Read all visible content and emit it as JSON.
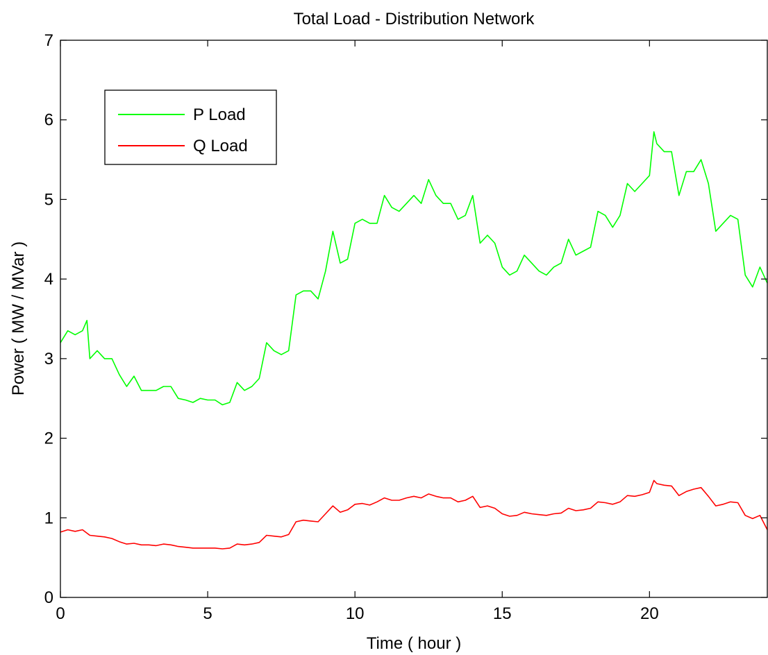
{
  "chart_data": {
    "type": "line",
    "title": "Total Load - Distribution Network",
    "xlabel": "Time ( hour )",
    "ylabel": "Power ( MW / MVar )",
    "xlim": [
      0,
      24
    ],
    "ylim": [
      0,
      7
    ],
    "x_ticks": [
      0,
      5,
      10,
      15,
      20
    ],
    "y_ticks": [
      0,
      1,
      2,
      3,
      4,
      5,
      6,
      7
    ],
    "grid": false,
    "legend_position": "top-left",
    "series": [
      {
        "name": "P Load",
        "color": "#00ff00",
        "x": [
          0,
          0.25,
          0.5,
          0.75,
          0.9,
          1.0,
          1.25,
          1.5,
          1.75,
          2.0,
          2.25,
          2.5,
          2.75,
          3.0,
          3.25,
          3.5,
          3.75,
          4.0,
          4.25,
          4.5,
          4.75,
          5.0,
          5.25,
          5.5,
          5.75,
          6.0,
          6.25,
          6.5,
          6.75,
          7.0,
          7.25,
          7.5,
          7.75,
          8.0,
          8.25,
          8.5,
          8.75,
          9.0,
          9.25,
          9.5,
          9.75,
          10.0,
          10.25,
          10.5,
          10.75,
          11.0,
          11.25,
          11.5,
          11.75,
          12.0,
          12.25,
          12.5,
          12.75,
          13.0,
          13.25,
          13.5,
          13.75,
          14.0,
          14.25,
          14.5,
          14.75,
          15.0,
          15.25,
          15.5,
          15.75,
          16.0,
          16.25,
          16.5,
          16.75,
          17.0,
          17.25,
          17.5,
          17.75,
          18.0,
          18.25,
          18.5,
          18.75,
          19.0,
          19.25,
          19.5,
          19.75,
          20.0,
          20.15,
          20.25,
          20.5,
          20.75,
          21.0,
          21.25,
          21.5,
          21.75,
          22.0,
          22.25,
          22.5,
          22.75,
          23.0,
          23.25,
          23.5,
          23.75,
          24.0
        ],
        "y": [
          3.2,
          3.35,
          3.3,
          3.35,
          3.48,
          3.0,
          3.1,
          3.0,
          3.0,
          2.8,
          2.65,
          2.78,
          2.6,
          2.6,
          2.6,
          2.65,
          2.65,
          2.5,
          2.48,
          2.45,
          2.5,
          2.48,
          2.48,
          2.42,
          2.45,
          2.7,
          2.6,
          2.65,
          2.75,
          3.2,
          3.1,
          3.05,
          3.1,
          3.8,
          3.85,
          3.85,
          3.75,
          4.1,
          4.6,
          4.2,
          4.25,
          4.7,
          4.75,
          4.7,
          4.7,
          5.05,
          4.9,
          4.85,
          4.95,
          5.05,
          4.95,
          5.25,
          5.05,
          4.95,
          4.95,
          4.75,
          4.8,
          5.05,
          4.45,
          4.55,
          4.45,
          4.15,
          4.05,
          4.1,
          4.3,
          4.2,
          4.1,
          4.05,
          4.15,
          4.2,
          4.5,
          4.3,
          4.35,
          4.4,
          4.85,
          4.8,
          4.65,
          4.8,
          5.2,
          5.1,
          5.2,
          5.3,
          5.85,
          5.7,
          5.6,
          5.6,
          5.05,
          5.35,
          5.35,
          5.5,
          5.2,
          4.6,
          4.7,
          4.8,
          4.75,
          4.05,
          3.9,
          4.15,
          3.95
        ]
      },
      {
        "name": "Q Load",
        "color": "#ff0000",
        "x": [
          0,
          0.25,
          0.5,
          0.75,
          1.0,
          1.25,
          1.5,
          1.75,
          2.0,
          2.25,
          2.5,
          2.75,
          3.0,
          3.25,
          3.5,
          3.75,
          4.0,
          4.25,
          4.5,
          4.75,
          5.0,
          5.25,
          5.5,
          5.75,
          6.0,
          6.25,
          6.5,
          6.75,
          7.0,
          7.25,
          7.5,
          7.75,
          8.0,
          8.25,
          8.5,
          8.75,
          9.0,
          9.25,
          9.5,
          9.75,
          10.0,
          10.25,
          10.5,
          10.75,
          11.0,
          11.25,
          11.5,
          11.75,
          12.0,
          12.25,
          12.5,
          12.75,
          13.0,
          13.25,
          13.5,
          13.75,
          14.0,
          14.25,
          14.5,
          14.75,
          15.0,
          15.25,
          15.5,
          15.75,
          16.0,
          16.25,
          16.5,
          16.75,
          17.0,
          17.25,
          17.5,
          17.75,
          18.0,
          18.25,
          18.5,
          18.75,
          19.0,
          19.25,
          19.5,
          19.75,
          20.0,
          20.15,
          20.25,
          20.5,
          20.75,
          21.0,
          21.25,
          21.5,
          21.75,
          22.0,
          22.25,
          22.5,
          22.75,
          23.0,
          23.25,
          23.5,
          23.75,
          24.0
        ],
        "y": [
          0.82,
          0.85,
          0.83,
          0.85,
          0.78,
          0.77,
          0.76,
          0.74,
          0.7,
          0.67,
          0.68,
          0.66,
          0.66,
          0.65,
          0.67,
          0.66,
          0.64,
          0.63,
          0.62,
          0.62,
          0.62,
          0.62,
          0.61,
          0.62,
          0.67,
          0.66,
          0.67,
          0.69,
          0.78,
          0.77,
          0.76,
          0.79,
          0.95,
          0.97,
          0.96,
          0.95,
          1.05,
          1.15,
          1.07,
          1.1,
          1.17,
          1.18,
          1.16,
          1.2,
          1.25,
          1.22,
          1.22,
          1.25,
          1.27,
          1.25,
          1.3,
          1.27,
          1.25,
          1.25,
          1.2,
          1.22,
          1.27,
          1.13,
          1.15,
          1.12,
          1.05,
          1.02,
          1.03,
          1.07,
          1.05,
          1.04,
          1.03,
          1.05,
          1.06,
          1.12,
          1.09,
          1.1,
          1.12,
          1.2,
          1.19,
          1.17,
          1.2,
          1.28,
          1.27,
          1.29,
          1.32,
          1.47,
          1.43,
          1.41,
          1.4,
          1.28,
          1.33,
          1.36,
          1.38,
          1.27,
          1.15,
          1.17,
          1.2,
          1.19,
          1.03,
          0.99,
          1.03,
          0.85
        ]
      }
    ]
  }
}
